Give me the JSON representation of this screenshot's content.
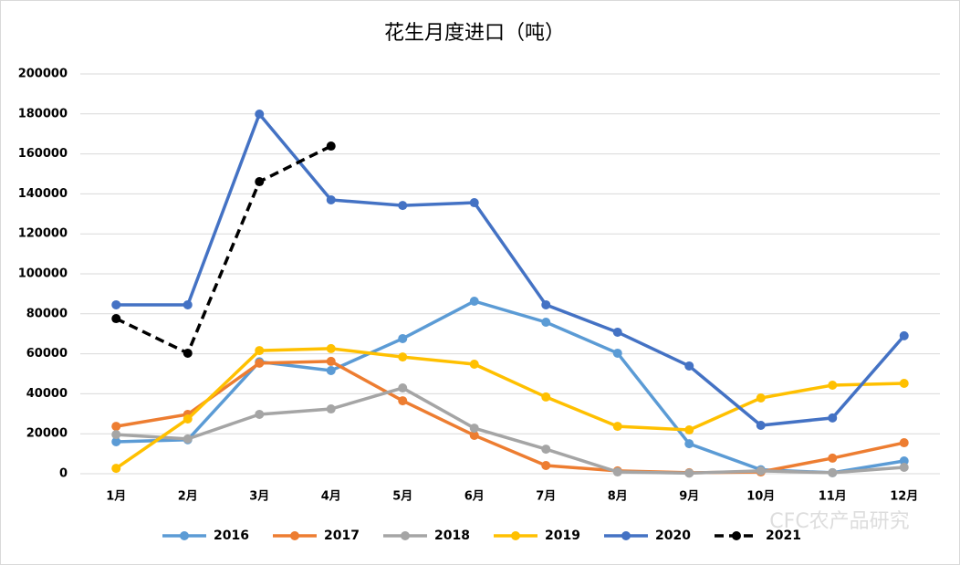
{
  "chart_data": {
    "type": "line",
    "title": "花生月度进口（吨）",
    "categories": [
      "1月",
      "2月",
      "3月",
      "4月",
      "5月",
      "6月",
      "7月",
      "8月",
      "9月",
      "10月",
      "11月",
      "12月"
    ],
    "series": [
      {
        "name": "2016",
        "color": "#5B9BD5",
        "values": [
          16000,
          17000,
          56000,
          51600,
          67600,
          86300,
          75800,
          60300,
          15000,
          2000,
          500,
          6400
        ]
      },
      {
        "name": "2017",
        "color": "#ED7D31",
        "values": [
          23700,
          29700,
          55300,
          56200,
          36500,
          19200,
          4100,
          1400,
          500,
          900,
          7800,
          15500
        ]
      },
      {
        "name": "2018",
        "color": "#A5A5A5",
        "values": [
          19600,
          17400,
          29700,
          32400,
          42900,
          22800,
          12300,
          900,
          300,
          1400,
          500,
          3200
        ]
      },
      {
        "name": "2019",
        "color": "#FFC000",
        "values": [
          2700,
          27400,
          61600,
          62600,
          58400,
          54800,
          38400,
          23700,
          21900,
          37900,
          44300,
          45200
        ]
      },
      {
        "name": "2020",
        "color": "#4472C4",
        "values": [
          84500,
          84500,
          179900,
          137000,
          134200,
          135600,
          84500,
          70800,
          53900,
          24200,
          27900,
          69000
        ]
      },
      {
        "name": "2021",
        "color": "#000000",
        "dashed": true,
        "values": [
          77600,
          60300,
          146100,
          163900,
          null,
          null,
          null,
          null,
          null,
          null,
          null,
          null
        ]
      }
    ],
    "ylim": [
      0,
      200000
    ],
    "yticks": [
      0,
      20000,
      40000,
      60000,
      80000,
      100000,
      120000,
      140000,
      160000,
      180000,
      200000
    ],
    "grid": true,
    "legend": "bottom",
    "watermark": "CFC农产品研究"
  }
}
